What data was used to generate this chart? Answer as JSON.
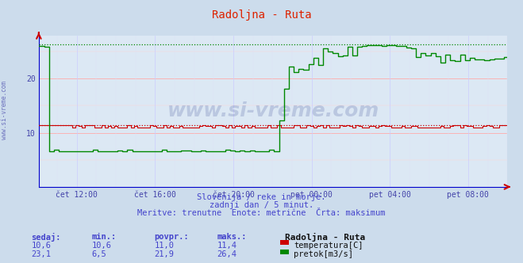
{
  "title": "Radoljna - Ruta",
  "bg_color": "#ccdcec",
  "plot_bg_color": "#dce8f4",
  "title_color": "#dd2200",
  "axis_color": "#0000cc",
  "tick_color": "#4444aa",
  "grid_major_color": "#ffaaaa",
  "grid_minor_color": "#ffd0d0",
  "vgrid_color": "#ccccff",
  "vgrid_fine_color": "#e0e0f8",
  "watermark": "www.si-vreme.com",
  "watermark_color": "#223388",
  "subtitle_color": "#4444cc",
  "temp_color": "#cc0000",
  "flow_color": "#008800",
  "ylim": [
    0,
    28
  ],
  "yticks": [
    10,
    20
  ],
  "xlabel_ticks": [
    "čet 12:00",
    "čet 16:00",
    "čet 20:00",
    "pet 00:00",
    "pet 04:00",
    "pet 08:00"
  ],
  "n_points": 288,
  "temp_max": 11.4,
  "flow_max": 26.4,
  "subtitle_lines": [
    "Slovenija / reke in morje.",
    "zadnji dan / 5 minut.",
    "Meritve: trenutne  Enote: metrične  Črta: maksimum"
  ],
  "table_headers": [
    "sedaj:",
    "min.:",
    "povpr.:",
    "maks.:"
  ],
  "table_temp": [
    "10,6",
    "10,6",
    "11,0",
    "11,4"
  ],
  "table_flow": [
    "23,1",
    "6,5",
    "21,9",
    "26,4"
  ],
  "station_label": "Radoljna - Ruta",
  "legend_temp": "temperatura[C]",
  "legend_flow": "pretok[m3/s]",
  "left_label": "www.si-vreme.com"
}
